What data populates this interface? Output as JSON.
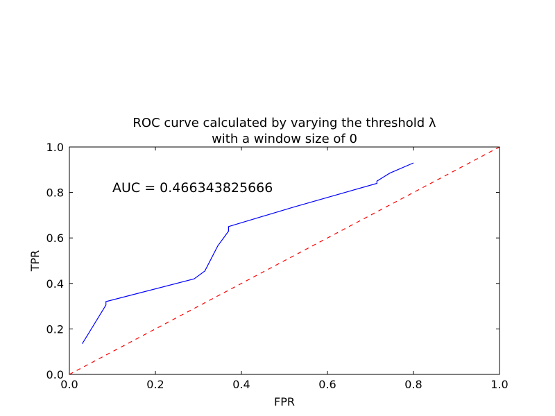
{
  "chart_data": {
    "type": "line",
    "title_line1": "ROC curve calculated by varying the threshold λ",
    "title_line2": "with a window size of 0",
    "xlabel": "FPR",
    "ylabel": "TPR",
    "xlim": [
      0.0,
      1.0
    ],
    "ylim": [
      0.0,
      1.0
    ],
    "xticks": [
      "0.0",
      "0.2",
      "0.4",
      "0.6",
      "0.8",
      "1.0"
    ],
    "yticks": [
      "0.0",
      "0.2",
      "0.4",
      "0.6",
      "0.8",
      "1.0"
    ],
    "grid": false,
    "annotation": "AUC = 0.466343825666",
    "series": [
      {
        "color": "#0000ff",
        "style": "solid",
        "points": [
          [
            0.03,
            0.135
          ],
          [
            0.085,
            0.305
          ],
          [
            0.085,
            0.32
          ],
          [
            0.29,
            0.42
          ],
          [
            0.315,
            0.455
          ],
          [
            0.345,
            0.565
          ],
          [
            0.37,
            0.63
          ],
          [
            0.37,
            0.65
          ],
          [
            0.52,
            0.735
          ],
          [
            0.715,
            0.84
          ],
          [
            0.715,
            0.85
          ],
          [
            0.745,
            0.885
          ],
          [
            0.8,
            0.93
          ]
        ]
      },
      {
        "color": "#ff0000",
        "style": "dashed",
        "points": [
          [
            0.0,
            0.0
          ],
          [
            1.0,
            1.0
          ]
        ]
      }
    ]
  }
}
